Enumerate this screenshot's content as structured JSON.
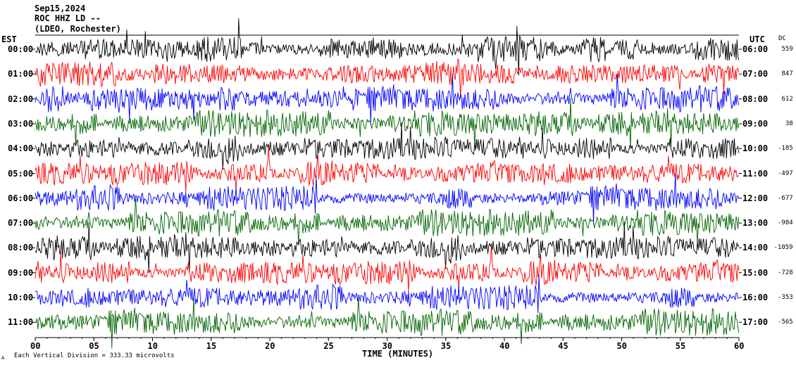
{
  "header": {
    "date": "Sep15,2024",
    "station": "ROC HHZ LD --",
    "location": "(LDEO, Rochester)"
  },
  "axes": {
    "left_timezone": "EST",
    "right_timezone": "UTC",
    "dc_label": "DC",
    "xlabel": "TIME (MINUTES)",
    "scale_note": "Each Vertical Division =  333.33 microvolts",
    "corner_mark": "A"
  },
  "colors": {
    "background": "#ffffff",
    "frame": "#000000",
    "trace_colors": [
      "#000000",
      "#ff0000",
      "#0000ff",
      "#006400"
    ]
  },
  "chart_data": {
    "type": "line",
    "title": "Sep15,2024",
    "xlabel": "TIME (MINUTES)",
    "xlim": [
      0,
      60
    ],
    "x_ticks": [
      "00",
      "05",
      "10",
      "15",
      "20",
      "25",
      "30",
      "35",
      "40",
      "45",
      "50",
      "55",
      "60"
    ],
    "left_labels": [
      "00:00",
      "01:00",
      "02:00",
      "03:00",
      "04:00",
      "05:00",
      "06:00",
      "07:00",
      "08:00",
      "09:00",
      "10:00",
      "11:00"
    ],
    "right_labels": [
      "06:00",
      "07:00",
      "08:00",
      "09:00",
      "10:00",
      "11:00",
      "12:00",
      "13:00",
      "14:00",
      "15:00",
      "16:00",
      "17:00"
    ],
    "dc_offsets": [
      "559",
      "847",
      "612",
      "38",
      "-185",
      "-497",
      "-677",
      "-984",
      "-1059",
      "-728",
      "-353",
      "-565"
    ],
    "trace_colors": [
      "black",
      "red",
      "blue",
      "green",
      "black",
      "red",
      "blue",
      "green",
      "black",
      "red",
      "blue",
      "green"
    ]
  }
}
